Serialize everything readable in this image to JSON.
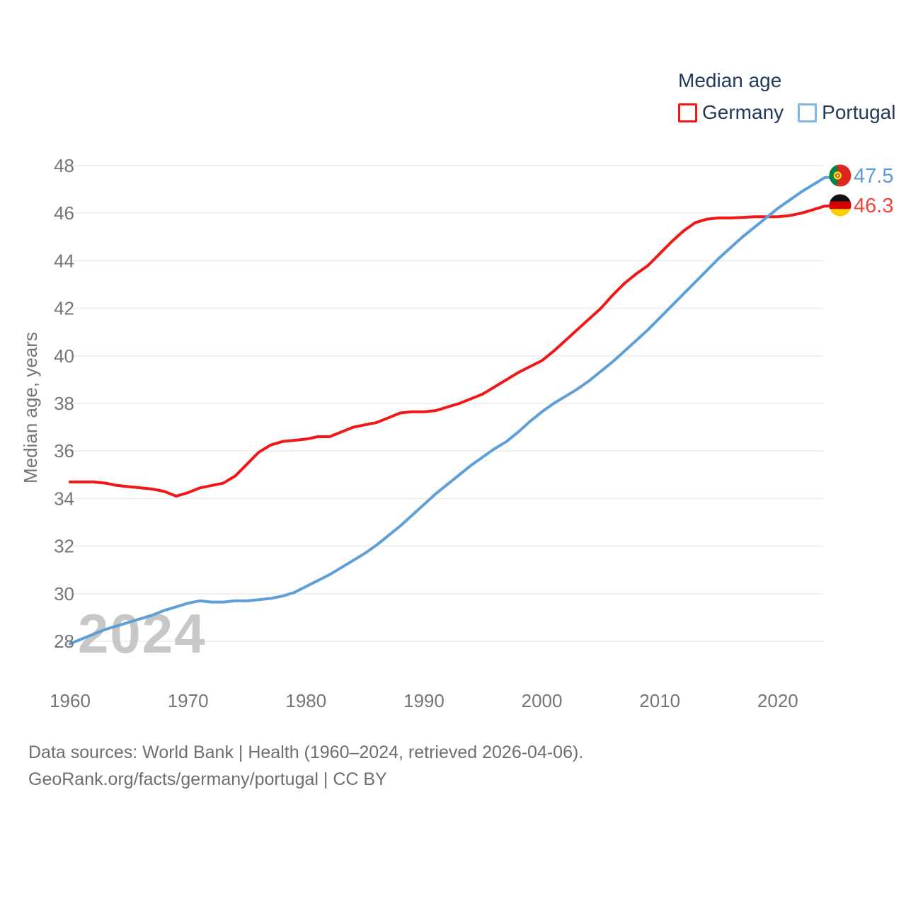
{
  "legend": {
    "title": "Median age",
    "items": [
      {
        "label": "Germany",
        "color": "#f21717",
        "swatch_border": "#f21717"
      },
      {
        "label": "Portugal",
        "color": "#5f9fd9",
        "swatch_border": "#7db7e8"
      }
    ]
  },
  "y_axis": {
    "title": "Median age, years",
    "ticks": [
      48,
      46,
      44,
      42,
      40,
      38,
      36,
      34,
      32,
      30,
      28
    ]
  },
  "x_axis": {
    "ticks": [
      1960,
      1970,
      1980,
      1990,
      2000,
      2010,
      2020
    ]
  },
  "watermark": "2024",
  "end_labels": {
    "portugal": {
      "value": "47.5",
      "color": "#5b9bd5",
      "flag": "portugal-flag"
    },
    "germany": {
      "value": "46.3",
      "color": "#f3433b",
      "flag": "germany-flag"
    }
  },
  "footer": {
    "line1": "Data sources: World Bank | Health (1960–2024, retrieved 2026-04-06).",
    "line2": "GeoRank.org/facts/germany/portugal | CC BY"
  },
  "colors": {
    "germany_line": "#f21717",
    "portugal_line": "#5f9fd9",
    "grid": "#ececec",
    "tick_text": "#757575",
    "watermark": "#c7c7c7",
    "legend_text": "#23395c"
  },
  "chart_data": {
    "type": "line",
    "title": "Median age",
    "xlabel": "",
    "ylabel": "Median age, years",
    "xlim": [
      1960,
      2024
    ],
    "ylim": [
      28,
      48
    ],
    "grid": "horizontal",
    "legend_position": "top-right",
    "x": [
      1960,
      1961,
      1962,
      1963,
      1964,
      1965,
      1966,
      1967,
      1968,
      1969,
      1970,
      1971,
      1972,
      1973,
      1974,
      1975,
      1976,
      1977,
      1978,
      1979,
      1980,
      1981,
      1982,
      1983,
      1984,
      1985,
      1986,
      1987,
      1988,
      1989,
      1990,
      1991,
      1992,
      1993,
      1994,
      1995,
      1996,
      1997,
      1998,
      1999,
      2000,
      2001,
      2002,
      2003,
      2004,
      2005,
      2006,
      2007,
      2008,
      2009,
      2010,
      2011,
      2012,
      2013,
      2014,
      2015,
      2016,
      2017,
      2018,
      2019,
      2020,
      2021,
      2022,
      2023,
      2024
    ],
    "series": [
      {
        "name": "Germany",
        "color": "#f21717",
        "end_value": 46.3,
        "values": [
          34.7,
          34.7,
          34.7,
          34.65,
          34.55,
          34.5,
          34.45,
          34.4,
          34.3,
          34.1,
          34.25,
          34.45,
          34.55,
          34.65,
          34.95,
          35.45,
          35.95,
          36.25,
          36.4,
          36.45,
          36.5,
          36.6,
          36.6,
          36.8,
          37.0,
          37.1,
          37.2,
          37.4,
          37.6,
          37.65,
          37.65,
          37.7,
          37.85,
          38.0,
          38.2,
          38.4,
          38.7,
          39.0,
          39.3,
          39.55,
          39.8,
          40.2,
          40.65,
          41.1,
          41.55,
          42.0,
          42.55,
          43.05,
          43.45,
          43.8,
          44.3,
          44.8,
          45.25,
          45.6,
          45.75,
          45.8,
          45.8,
          45.82,
          45.85,
          45.85,
          45.85,
          45.9,
          46.0,
          46.15,
          46.3
        ]
      },
      {
        "name": "Portugal",
        "color": "#5f9fd9",
        "end_value": 47.5,
        "values": [
          27.9,
          28.1,
          28.3,
          28.5,
          28.65,
          28.8,
          28.95,
          29.1,
          29.3,
          29.45,
          29.6,
          29.7,
          29.65,
          29.65,
          29.7,
          29.7,
          29.75,
          29.8,
          29.9,
          30.05,
          30.3,
          30.55,
          30.8,
          31.1,
          31.4,
          31.7,
          32.05,
          32.45,
          32.85,
          33.3,
          33.75,
          34.2,
          34.6,
          35.0,
          35.4,
          35.75,
          36.1,
          36.4,
          36.8,
          37.25,
          37.65,
          38.0,
          38.3,
          38.6,
          38.95,
          39.35,
          39.75,
          40.2,
          40.65,
          41.1,
          41.6,
          42.1,
          42.6,
          43.1,
          43.6,
          44.1,
          44.55,
          45.0,
          45.4,
          45.8,
          46.2,
          46.55,
          46.9,
          47.2,
          47.5
        ]
      }
    ]
  }
}
